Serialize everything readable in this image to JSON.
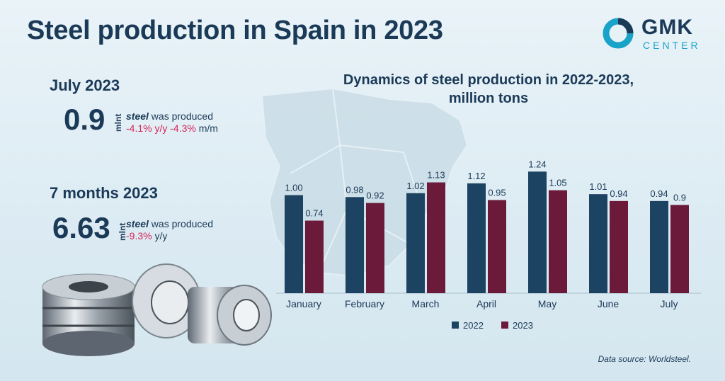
{
  "header": {
    "title": "Steel production in Spain in 2023",
    "logo_main": "GMK",
    "logo_sub": "CENTER"
  },
  "july": {
    "heading": "July 2023",
    "value": "0.9",
    "unit": "mlnt",
    "desc_steel": "steel",
    "desc_rest": " was produced",
    "yy": "-4.1% y/y",
    "mm": "-4.3%",
    "mm_suffix": " m/m"
  },
  "seven_months": {
    "heading": "7 months 2023",
    "value": "6.63",
    "unit": "mlnt",
    "desc_steel": "steel",
    "desc_rest": " was produced",
    "yy": "-9.3%",
    "yy_suffix": " y/y"
  },
  "chart_data": {
    "type": "bar",
    "title": "Dynamics of steel production in 2022-2023,",
    "subtitle": "million tons",
    "categories": [
      "January",
      "February",
      "March",
      "April",
      "May",
      "June",
      "July"
    ],
    "series": [
      {
        "name": "2022",
        "color": "#1c4361",
        "values": [
          1.0,
          0.98,
          1.02,
          1.12,
          1.24,
          1.01,
          0.94
        ],
        "labels": [
          "1.00",
          "0.98",
          "1.02",
          "1.12",
          "1.24",
          "1.01",
          "0.94"
        ]
      },
      {
        "name": "2023",
        "color": "#6b1a3a",
        "values": [
          0.74,
          0.92,
          1.13,
          0.95,
          1.05,
          0.94,
          0.9
        ],
        "labels": [
          "0.74",
          "0.92",
          "1.13",
          "0.95",
          "1.05",
          "0.94",
          "0.9"
        ]
      }
    ],
    "ylim": [
      0,
      1.3
    ],
    "legend": "bottom-center"
  },
  "source": "Data source:  Worldsteel."
}
